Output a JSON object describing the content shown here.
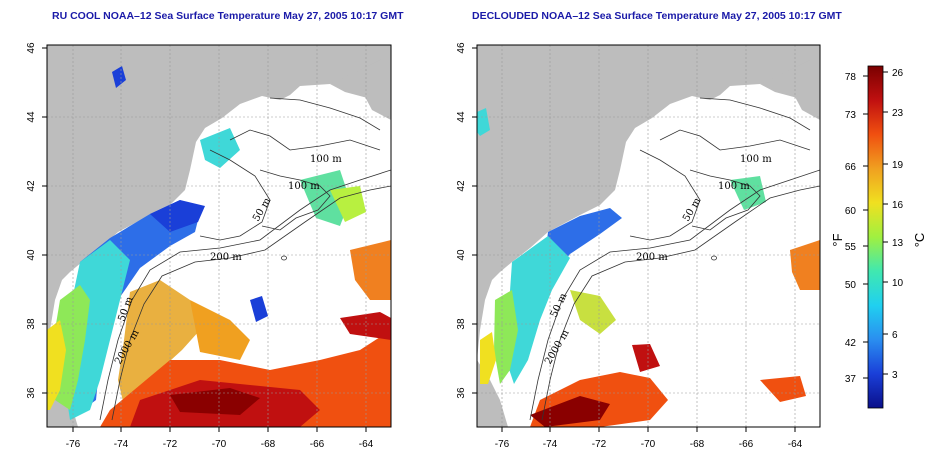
{
  "left_panel": {
    "title": "RU COOL NOAA–12 Sea Surface Temperature May 27, 2005 10:17 GMT",
    "lon_ticks": [
      "-76",
      "-74",
      "-72",
      "-70",
      "-68",
      "-66",
      "-64"
    ],
    "lat_ticks": [
      "46",
      "44",
      "42",
      "40",
      "38",
      "36"
    ],
    "contour_labels": [
      "100 m",
      "100 m",
      "50 m",
      "200 m",
      "50 m",
      "2000 m"
    ]
  },
  "right_panel": {
    "title": "DECLOUDED NOAA–12 Sea Surface Temperature May 27, 2005 10:17 GMT",
    "lon_ticks": [
      "-76",
      "-74",
      "-72",
      "-70",
      "-68",
      "-66",
      "-64"
    ],
    "lat_ticks": [
      "46",
      "44",
      "42",
      "40",
      "38",
      "36"
    ],
    "contour_labels": [
      "100 m",
      "100 m",
      "50 m",
      "200 m",
      "50 m",
      "2000 m"
    ]
  },
  "colorbar": {
    "fahrenheit_label": "°F",
    "celsius_label": "°C",
    "fahrenheit_ticks": [
      "78",
      "73",
      "66",
      "60",
      "55",
      "50",
      "42",
      "37"
    ],
    "celsius_ticks": [
      "26",
      "23",
      "19",
      "16",
      "13",
      "10",
      "6",
      "3"
    ],
    "colors": [
      "#0a0f8a",
      "#1a3fd8",
      "#2a8ef0",
      "#20d0f0",
      "#40e8b0",
      "#a0f040",
      "#f0e020",
      "#f0a020",
      "#f05010",
      "#c01010",
      "#7a0000"
    ]
  }
}
